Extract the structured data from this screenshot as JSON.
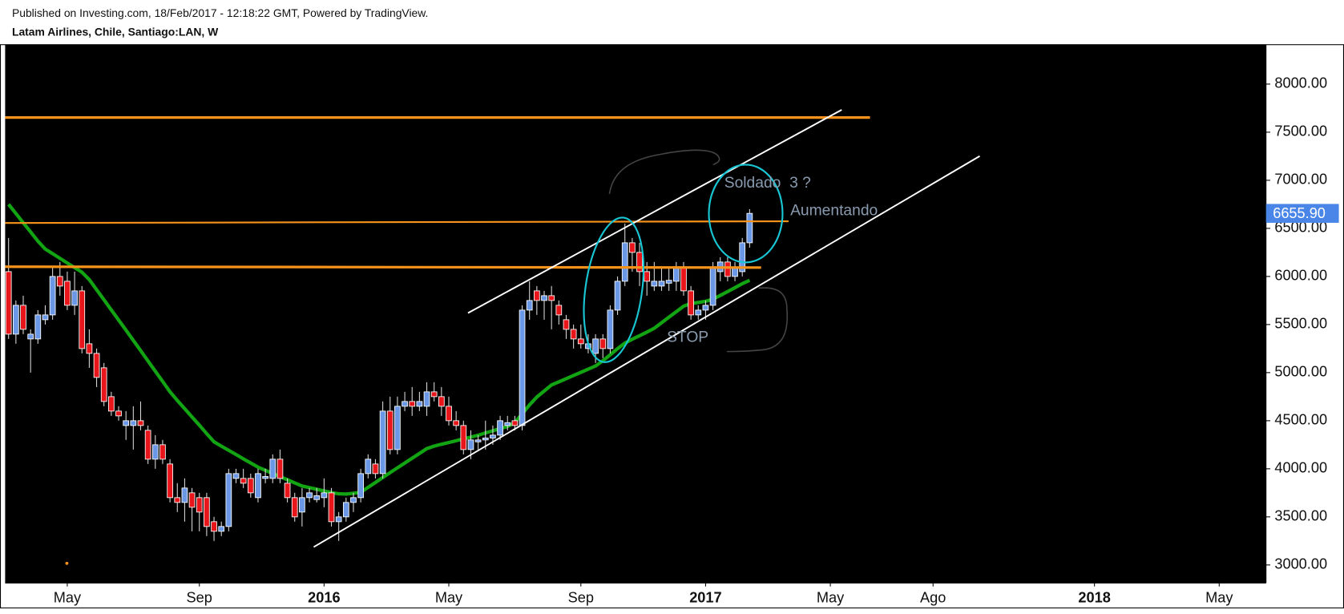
{
  "header": {
    "published": "Published on Investing.com, 18/Feb/2017 - 12:18:22 GMT, Powered by TradingView.",
    "symbol": "Latam Airlines, Chile, Santiago:LAN, W"
  },
  "chart_data": {
    "type": "candlestick",
    "categories": [
      null,
      null,
      null,
      null,
      null,
      null,
      null,
      null,
      "May",
      null,
      null,
      null,
      null,
      null,
      null,
      null,
      null,
      null,
      null,
      null,
      null,
      null,
      null,
      null,
      null,
      null,
      "Sep",
      null,
      null,
      null,
      null,
      null,
      null,
      null,
      null,
      null,
      null,
      null,
      null,
      null,
      null,
      null,
      null,
      "2016",
      null,
      null,
      null,
      null,
      null,
      null,
      null,
      null,
      null,
      null,
      null,
      null,
      null,
      null,
      null,
      null,
      "May",
      null,
      null,
      null,
      null,
      null,
      null,
      null,
      null,
      null,
      null,
      null,
      null,
      null,
      null,
      null,
      null,
      null,
      "Sep",
      null,
      null,
      null,
      null,
      null,
      null,
      null,
      null,
      null,
      null,
      null,
      null,
      null,
      null,
      null,
      null,
      "2017",
      null,
      null,
      null,
      null,
      null,
      null,
      null,
      null,
      null,
      null,
      null,
      null,
      null,
      null,
      null,
      null,
      "May",
      null,
      null,
      null,
      null,
      null,
      null,
      null,
      null,
      null,
      null,
      null,
      null,
      null,
      "Ago",
      null,
      null,
      null,
      null,
      null,
      null,
      null,
      null,
      null,
      null,
      null,
      null,
      null,
      null,
      null,
      null,
      null,
      null,
      null,
      null,
      null,
      "2018",
      null,
      null,
      null,
      null,
      null,
      null,
      null,
      null,
      null,
      null,
      null,
      null,
      null,
      null,
      null,
      null,
      "May",
      null,
      null,
      null,
      null,
      null,
      null
    ],
    "open": [
      6050,
      5400,
      5700,
      5350,
      5350,
      5550,
      5600,
      6000,
      5950,
      5700,
      5850,
      5300,
      5200,
      5050,
      4750,
      4600,
      4450,
      4450,
      4500,
      4400,
      4100,
      4250,
      4050,
      3700,
      3650,
      3750,
      3700,
      3700,
      3450,
      3350,
      3400,
      3900,
      3900,
      3900,
      3700,
      3900,
      3900,
      4100,
      3850,
      3700,
      3550,
      3700,
      3680,
      3700,
      3750,
      3450,
      3500,
      3650,
      3700,
      3950,
      4050,
      3950,
      4600,
      4200,
      4650,
      4700,
      4650,
      4650,
      4800,
      4750,
      4650,
      4500,
      4450,
      4200,
      4280,
      4300,
      4320,
      4350,
      4450,
      4500,
      4450,
      5650,
      5850,
      5750,
      5800,
      5700,
      5550,
      5450,
      5350,
      5250,
      5200,
      5350,
      5250,
      5650,
      5950,
      6350,
      6250,
      6050,
      5900,
      5900,
      5930,
      5950,
      6100,
      5850,
      5600,
      5650,
      5700,
      6050,
      6150,
      6000,
      6050,
      6350,
      null,
      null,
      null,
      null,
      null,
      null,
      null,
      null,
      null,
      null,
      null,
      null,
      null,
      null,
      null,
      null,
      null,
      null,
      null,
      null,
      null,
      null,
      null,
      null,
      null,
      null,
      null,
      null,
      null,
      null,
      null,
      null,
      null,
      null,
      null,
      null,
      null,
      null,
      null,
      null,
      null,
      null,
      null,
      null,
      null,
      null,
      null,
      null,
      null,
      null,
      null,
      null,
      null,
      null,
      null,
      null,
      null,
      null,
      null,
      null,
      null,
      null,
      null,
      null,
      null,
      null,
      null,
      null,
      null,
      null
    ],
    "high": [
      6400,
      5750,
      5800,
      5450,
      5650,
      5700,
      6100,
      6150,
      6050,
      6050,
      5900,
      5450,
      5250,
      5100,
      4800,
      4650,
      4600,
      4650,
      4700,
      4450,
      4350,
      4300,
      4100,
      3850,
      3900,
      3800,
      3750,
      3750,
      3500,
      3450,
      4000,
      4000,
      4000,
      3950,
      4000,
      4000,
      4150,
      4200,
      3900,
      3750,
      3800,
      3800,
      3800,
      3900,
      3800,
      3550,
      3700,
      3750,
      4000,
      4150,
      4100,
      4700,
      4750,
      4750,
      4800,
      4850,
      4800,
      4900,
      4900,
      4850,
      4750,
      4600,
      4500,
      4400,
      4350,
      4500,
      4450,
      4550,
      4550,
      4550,
      5700,
      5950,
      5900,
      5850,
      5900,
      5750,
      5600,
      5500,
      5500,
      5400,
      5400,
      5400,
      5700,
      6000,
      6550,
      6400,
      6350,
      6150,
      6150,
      6100,
      6100,
      6150,
      6150,
      5900,
      5700,
      5750,
      6150,
      6200,
      6200,
      6150,
      6400,
      6700,
      null,
      null,
      null,
      null,
      null,
      null,
      null,
      null,
      null,
      null,
      null,
      null,
      null,
      null,
      null,
      null,
      null,
      null,
      null,
      null,
      null,
      null,
      null,
      null,
      null,
      null,
      null,
      null,
      null,
      null,
      null,
      null,
      null,
      null,
      null,
      null,
      null,
      null,
      null,
      null,
      null,
      null,
      null,
      null,
      null,
      null,
      null,
      null,
      null,
      null,
      null,
      null,
      null,
      null,
      null,
      null,
      null,
      null,
      null,
      null,
      null,
      null,
      null,
      null,
      null,
      null,
      null,
      null,
      null,
      null
    ],
    "low": [
      5350,
      5300,
      5400,
      5000,
      5300,
      5500,
      5550,
      5800,
      5650,
      5600,
      5200,
      5050,
      4850,
      4650,
      4550,
      4500,
      4300,
      4200,
      4400,
      4050,
      4000,
      4050,
      3650,
      3550,
      3450,
      3350,
      3350,
      3300,
      3250,
      3300,
      3350,
      3850,
      3800,
      3700,
      3650,
      3850,
      3850,
      3850,
      3650,
      3450,
      3400,
      3650,
      3650,
      3600,
      3400,
      3250,
      3450,
      3550,
      3650,
      3900,
      3900,
      3900,
      4150,
      4150,
      4600,
      4550,
      4600,
      4550,
      4700,
      4550,
      4450,
      4400,
      4150,
      4100,
      4200,
      4200,
      4250,
      4300,
      4400,
      4400,
      4400,
      5550,
      5600,
      5550,
      5450,
      5500,
      5350,
      5250,
      5250,
      5200,
      5100,
      5150,
      5200,
      5600,
      5900,
      6050,
      5900,
      5800,
      5850,
      5850,
      5850,
      5850,
      5800,
      5550,
      5550,
      5550,
      5650,
      5950,
      5950,
      5950,
      6000,
      6300,
      null,
      null,
      null,
      null,
      null,
      null,
      null,
      null,
      null,
      null,
      null,
      null,
      null,
      null,
      null,
      null,
      null,
      null,
      null,
      null,
      null,
      null,
      null,
      null,
      null,
      null,
      null,
      null,
      null,
      null,
      null,
      null,
      null,
      null,
      null,
      null,
      null,
      null,
      null,
      null,
      null,
      null,
      null,
      null,
      null,
      null,
      null,
      null,
      null,
      null,
      null,
      null,
      null,
      null,
      null,
      null,
      null,
      null,
      null,
      null,
      null,
      null,
      null,
      null,
      null,
      null,
      null,
      null,
      null,
      null
    ],
    "close": [
      5400,
      5700,
      5450,
      5400,
      5600,
      5600,
      6000,
      5900,
      5700,
      5850,
      5250,
      5200,
      4950,
      4700,
      4600,
      4550,
      4500,
      4500,
      4450,
      4100,
      4250,
      4100,
      3700,
      3650,
      3800,
      3600,
      3550,
      3400,
      3350,
      3400,
      3950,
      3950,
      3850,
      3750,
      3950,
      3920,
      4100,
      3900,
      3700,
      3500,
      3700,
      3750,
      3720,
      3750,
      3450,
      3500,
      3650,
      3700,
      3950,
      4100,
      3950,
      4600,
      4200,
      4650,
      4700,
      4650,
      4700,
      4800,
      4750,
      4650,
      4500,
      4450,
      4200,
      4300,
      4300,
      4320,
      4350,
      4500,
      4480,
      4450,
      5650,
      5750,
      5750,
      5800,
      5750,
      5600,
      5450,
      5350,
      5300,
      5300,
      5350,
      5250,
      5650,
      5950,
      6350,
      6250,
      6050,
      5950,
      5950,
      5950,
      5960,
      6100,
      5850,
      5600,
      5650,
      5700,
      6100,
      6150,
      6000,
      6100,
      6350,
      6655.9,
      null,
      null,
      null,
      null,
      null,
      null,
      null,
      null,
      null,
      null,
      null,
      null,
      null,
      null,
      null,
      null,
      null,
      null,
      null,
      null,
      null,
      null,
      null,
      null,
      null,
      null,
      null,
      null,
      null,
      null,
      null,
      null,
      null,
      null,
      null,
      null,
      null,
      null,
      null,
      null,
      null,
      null,
      null,
      null,
      null,
      null,
      null,
      null,
      null,
      null,
      null,
      null,
      null,
      null,
      null,
      null,
      null,
      null,
      null,
      null,
      null,
      null,
      null,
      null,
      null,
      null,
      null,
      null,
      null,
      null
    ],
    "moving_average": {
      "color": "#12a412",
      "values": [
        6750,
        6654,
        6558,
        6463,
        6367,
        6285,
        6237,
        6189,
        6140,
        6092,
        6044,
        5967,
        5862,
        5757,
        5652,
        5547,
        5442,
        5336,
        5229,
        5122,
        5015,
        4908,
        4801,
        4711,
        4625,
        4539,
        4453,
        4366,
        4280,
        4236,
        4192,
        4148,
        4104,
        4060,
        4017,
        3984,
        3951,
        3918,
        3886,
        3853,
        3821,
        3804,
        3787,
        3770,
        3753,
        3740,
        3737,
        3745,
        3756,
        3807,
        3858,
        3909,
        3960,
        4010,
        4060,
        4110,
        4160,
        4210,
        4236,
        4255,
        4273,
        4292,
        4311,
        4329,
        4350,
        4373,
        4395,
        4418,
        4440,
        4480,
        4572,
        4664,
        4746,
        4809,
        4872,
        4904,
        4937,
        4970,
        5003,
        5036,
        5069,
        5123,
        5186,
        5249,
        5306,
        5347,
        5384,
        5421,
        5461,
        5518,
        5576,
        5633,
        5690,
        5719,
        5730,
        5742,
        5763,
        5803,
        5843,
        5883,
        5925,
        5960,
        null,
        null,
        null,
        null,
        null,
        null,
        null,
        null,
        null,
        null,
        null,
        null,
        null,
        null,
        null,
        null,
        null,
        null,
        null,
        null,
        null,
        null,
        null,
        null,
        null,
        null,
        null,
        null,
        null,
        null,
        null,
        null,
        null,
        null,
        null,
        null,
        null,
        null,
        null,
        null,
        null,
        null,
        null,
        null,
        null,
        null,
        null,
        null,
        null,
        null,
        null,
        null,
        null,
        null,
        null,
        null,
        null,
        null,
        null,
        null,
        null,
        null,
        null,
        null,
        null,
        null,
        null,
        null,
        null,
        null
      ]
    },
    "up_color": "#6a97e6",
    "down_color": "#e8151b",
    "ylim": [
      2812,
      8410
    ],
    "yticks": [
      {
        "value": 3000,
        "label": "3000.00"
      },
      {
        "value": 3500,
        "label": "3500.00"
      },
      {
        "value": 4000,
        "label": "4000.00"
      },
      {
        "value": 4500,
        "label": "4500.00"
      },
      {
        "value": 5000,
        "label": "5000.00"
      },
      {
        "value": 5500,
        "label": "5500.00"
      },
      {
        "value": 6000,
        "label": "6000.00"
      },
      {
        "value": 6500,
        "label": "6500.00"
      },
      {
        "value": 7000,
        "label": "7000.00"
      },
      {
        "value": 7500,
        "label": "7500.00"
      },
      {
        "value": 8000,
        "label": "8000.00"
      }
    ],
    "last_price": {
      "value": 6655.9,
      "label": "6655.90",
      "color": "#4a86e8"
    },
    "annotations": [
      "Soldado  3 ?",
      "Aumentando",
      "STOP"
    ]
  }
}
